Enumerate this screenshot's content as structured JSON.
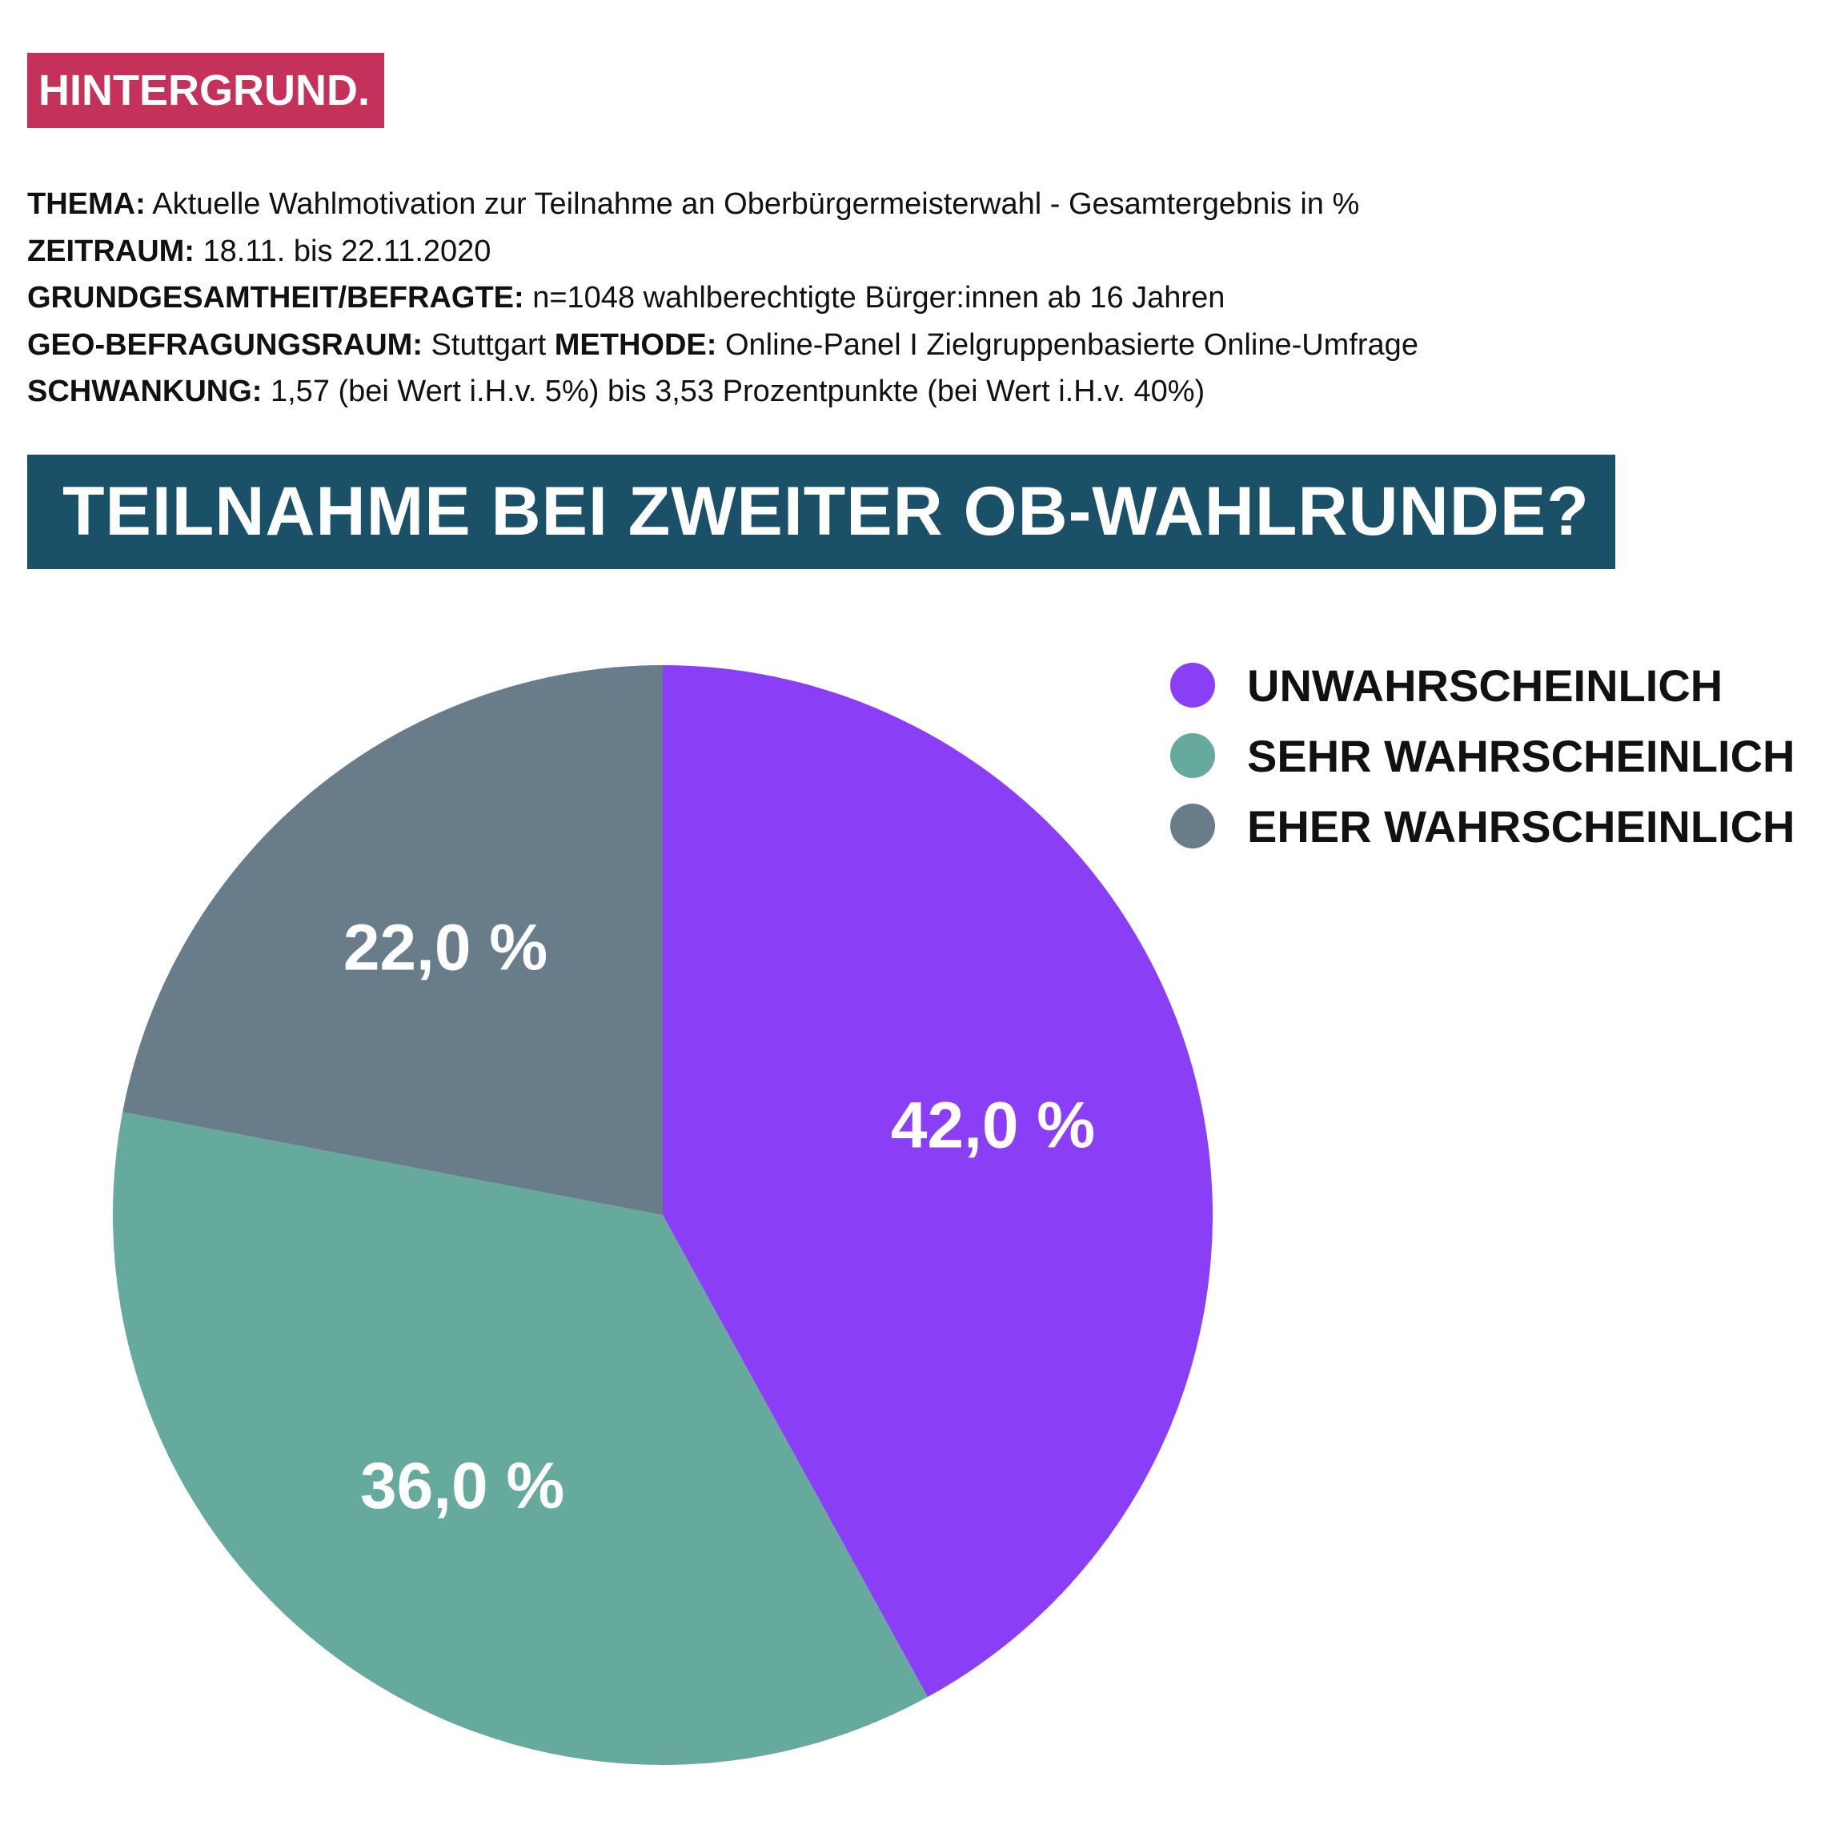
{
  "header": {
    "tag": "HINTERGRUND.",
    "tag_color": "#c4325a"
  },
  "meta": {
    "thema_key": "THEMA:",
    "thema_value": " Aktuelle Wahlmotivation zur Teilnahme an Oberbürgermeisterwahl - Gesamtergebnis in %",
    "zeitraum_key": "ZEITRAUM:",
    "zeitraum_value": " 18.11. bis 22.11.2020",
    "grund_key": "GRUNDGESAMTHEIT/BEFRAGTE:",
    "grund_value": " n=1048 wahlberechtigte Bürger:innen ab 16 Jahren",
    "geo_key": "GEO-BEFRAGUNGSRAUM:",
    "geo_value": " Stuttgart ",
    "methode_key": "METHODE:",
    "methode_value": " Online-Panel I Zielgruppenbasierte Online-Umfrage",
    "schwankung_key": "SCHWANKUNG:",
    "schwankung_value": " 1,57 (bei Wert i.H.v. 5%) bis 3,53 Prozentpunkte (bei Wert i.H.v. 40%)"
  },
  "banner": {
    "title": "TEILNAHME BEI ZWEITER OB-WAHLRUNDE?",
    "color": "#1a5068"
  },
  "chart_data": {
    "type": "pie",
    "title": "TEILNAHME BEI ZWEITER OB-WAHLRUNDE?",
    "unit": "%",
    "legend_position": "top-right",
    "start_angle_deg": 0,
    "direction": "clockwise",
    "slices": [
      {
        "name": "UNWAHRSCHEINLICH",
        "value": 42.0,
        "label": "42,0 %",
        "color": "#8a3ef6"
      },
      {
        "name": "SEHR WAHRSCHEINLICH",
        "value": 36.0,
        "label": "36,0 %",
        "color": "#66a99d"
      },
      {
        "name": "EHER WAHRSCHEINLICH",
        "value": 22.0,
        "label": "22,0 %",
        "color": "#687d89"
      }
    ]
  }
}
